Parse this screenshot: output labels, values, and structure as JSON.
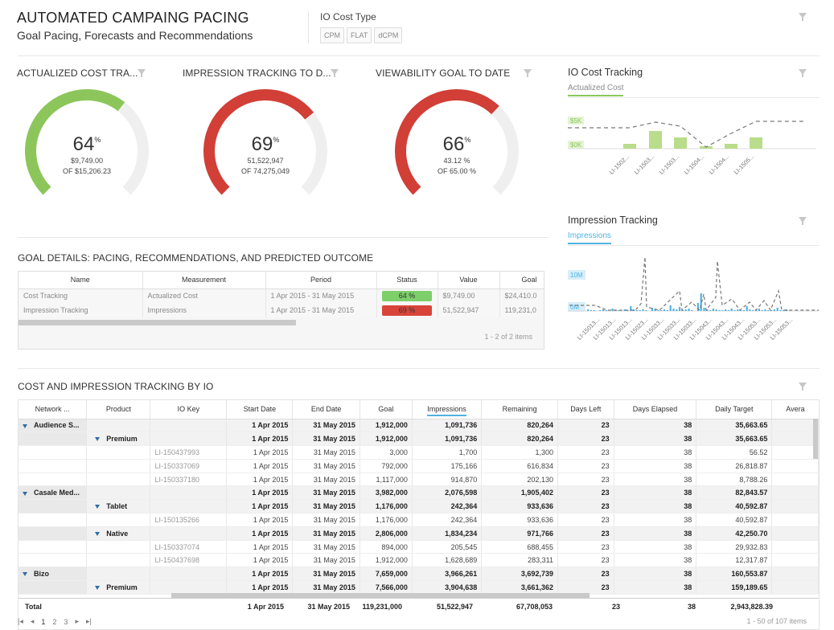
{
  "header": {
    "title": "AUTOMATED CAMPAING PACING",
    "subtitle": "Goal Pacing, Forecasts and Recommendations",
    "cost_type_label": "IO Cost Type",
    "cost_types": [
      "CPM",
      "FLAT",
      "dCPM"
    ]
  },
  "gauges": [
    {
      "title": "ACTUALIZED COST TRA...",
      "percent": "64",
      "percent_value": 64,
      "line1": "$9,749.00",
      "line2": "OF $15,206.23",
      "color": "#8cc65b"
    },
    {
      "title": "IMPRESSION TRACKING TO D...",
      "percent": "69",
      "percent_value": 69,
      "line1": "51,522,947",
      "line2": "OF 74,275,049",
      "color": "#d13f37"
    },
    {
      "title": "VIEWABILITY GOAL TO DATE",
      "percent": "66",
      "percent_value": 66,
      "line1": "43.12 %",
      "line2": "OF 65.00 %",
      "color": "#d13f37"
    }
  ],
  "pct_symbol": "%",
  "io_cost": {
    "title": "IO Cost Tracking",
    "tab": "Actualized Cost",
    "accent": "#8cc65b",
    "y_labels": [
      "$5K",
      "$0K"
    ],
    "x_labels": [
      "LI-1502...",
      "LI-1503...",
      "LI-1503...",
      "LI-1504...",
      "LI-1504...",
      "LI-1505..."
    ]
  },
  "impressions": {
    "title": "Impression Tracking",
    "tab": "Impressions",
    "accent": "#4fb3e3",
    "y_labels": [
      "10M",
      "0M"
    ],
    "x_labels": [
      "LI-15013...",
      "LI-15013...",
      "LI-15013...",
      "LI-15023...",
      "LI-15033...",
      "LI-15033...",
      "LI-15033...",
      "LI-15043...",
      "LI-15043...",
      "LI-15043...",
      "LI-15053...",
      "LI-15053...",
      "LI-15053..."
    ]
  },
  "goal_details": {
    "title": "GOAL DETAILS: PACING, RECOMMENDATIONS, AND PREDICTED OUTCOME",
    "columns": [
      "Name",
      "Measurement",
      "Period",
      "Status",
      "Value",
      "Goal"
    ],
    "rows": [
      {
        "name": "Cost Tracking",
        "measurement": "Actualized Cost",
        "period": "1 Apr 2015 - 31 May 2015",
        "status": "64 %",
        "status_color": "#7dcf6a",
        "value": "$9,749.00",
        "goal": "$24,410.0"
      },
      {
        "name": "Impression Tracking",
        "measurement": "Impressions",
        "period": "1 Apr 2015 - 31 May 2015",
        "status": "69 %",
        "status_color": "#d9443a",
        "value": "51,522,947",
        "goal": "119,231,0"
      }
    ],
    "pager": "1 - 2 of 2 items"
  },
  "io_grid": {
    "title": "COST AND IMPRESSION TRACKING BY IO",
    "columns": [
      "Network ...",
      "Product",
      "IO Key",
      "Start Date",
      "End Date",
      "Goal",
      "Impressions",
      "Remaining",
      "Days Left",
      "Days Elapsed",
      "Daily Target",
      "Avera"
    ],
    "rows": [
      {
        "type": "g1",
        "c": [
          "Audience S...",
          "",
          "",
          "1 Apr 2015",
          "31 May 2015",
          "1,912,000",
          "1,091,736",
          "820,264",
          "23",
          "38",
          "35,663.65"
        ]
      },
      {
        "type": "g2",
        "c": [
          "",
          "Premium",
          "",
          "1 Apr 2015",
          "31 May 2015",
          "1,912,000",
          "1,091,736",
          "820,264",
          "23",
          "38",
          "35,663.65"
        ]
      },
      {
        "type": "leaf",
        "c": [
          "",
          "",
          "LI-150437993",
          "1 Apr 2015",
          "31 May 2015",
          "3,000",
          "1,700",
          "1,300",
          "23",
          "38",
          "56.52"
        ]
      },
      {
        "type": "leaf",
        "c": [
          "",
          "",
          "LI-150337069",
          "1 Apr 2015",
          "31 May 2015",
          "792,000",
          "175,166",
          "616,834",
          "23",
          "38",
          "26,818.87"
        ]
      },
      {
        "type": "leaf",
        "c": [
          "",
          "",
          "LI-150337180",
          "1 Apr 2015",
          "31 May 2015",
          "1,117,000",
          "914,870",
          "202,130",
          "23",
          "38",
          "8,788.26"
        ]
      },
      {
        "type": "g1",
        "c": [
          "Casale Med...",
          "",
          "",
          "1 Apr 2015",
          "31 May 2015",
          "3,982,000",
          "2,076,598",
          "1,905,402",
          "23",
          "38",
          "82,843.57"
        ]
      },
      {
        "type": "g2",
        "c": [
          "",
          "Tablet",
          "",
          "1 Apr 2015",
          "31 May 2015",
          "1,176,000",
          "242,364",
          "933,636",
          "23",
          "38",
          "40,592.87"
        ]
      },
      {
        "type": "leaf",
        "c": [
          "",
          "",
          "LI-150135266",
          "1 Apr 2015",
          "31 May 2015",
          "1,176,000",
          "242,364",
          "933,636",
          "23",
          "38",
          "40,592.87"
        ]
      },
      {
        "type": "g2",
        "c": [
          "",
          "Native",
          "",
          "1 Apr 2015",
          "31 May 2015",
          "2,806,000",
          "1,834,234",
          "971,766",
          "23",
          "38",
          "42,250.70"
        ]
      },
      {
        "type": "leaf",
        "c": [
          "",
          "",
          "LI-150337074",
          "1 Apr 2015",
          "31 May 2015",
          "894,000",
          "205,545",
          "688,455",
          "23",
          "38",
          "29,932.83"
        ]
      },
      {
        "type": "leaf",
        "c": [
          "",
          "",
          "LI-150437698",
          "1 Apr 2015",
          "31 May 2015",
          "1,912,000",
          "1,628,689",
          "283,311",
          "23",
          "38",
          "12,317.87"
        ]
      },
      {
        "type": "g1",
        "c": [
          "Bizo",
          "",
          "",
          "1 Apr 2015",
          "31 May 2015",
          "7,659,000",
          "3,966,261",
          "3,692,739",
          "23",
          "38",
          "160,553.87"
        ]
      },
      {
        "type": "g2",
        "c": [
          "",
          "Premium",
          "",
          "1 Apr 2015",
          "31 May 2015",
          "7,566,000",
          "3,904,638",
          "3,661,362",
          "23",
          "38",
          "159,189.65"
        ]
      }
    ],
    "total": {
      "label": "Total",
      "start": "1 Apr 2015",
      "end": "31 May 2015",
      "goal": "119,231,000",
      "impressions": "51,522,947",
      "remaining": "67,708,053",
      "days_left": "23",
      "days_elapsed": "38",
      "daily_target": "2,943,828.39"
    },
    "pages": [
      "1",
      "2",
      "3"
    ],
    "pager_info": "1 - 50 of 107 items"
  }
}
